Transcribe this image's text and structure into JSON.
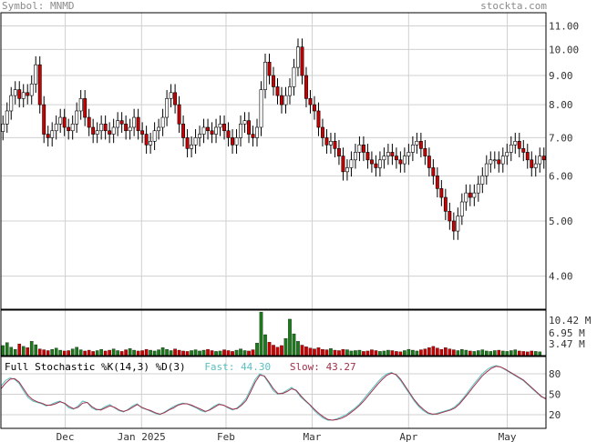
{
  "header": {
    "symbol_label": "Symbol: MNMD",
    "source_label": "stockta.com"
  },
  "indicator": {
    "name": "Full Stochastic %K(14,3) %D(3)",
    "fast_label": "Fast:",
    "fast_value": "44.30",
    "slow_label": "Slow:",
    "slow_value": "43.27"
  },
  "colors": {
    "up_candle": "#ffffff",
    "down_candle": "#cc0000",
    "up_volume": "#1a7a1a",
    "down_volume": "#cc0000",
    "fast_line": "#5bbfc0",
    "slow_line": "#a0304a",
    "grid": "#d0d0d0"
  },
  "chart_data": [
    {
      "type": "candlestick",
      "scale": "log",
      "ylim": [
        3.5,
        11.6
      ],
      "y_ticks": [
        "11.00",
        "10.00",
        "9.00",
        "8.00",
        "7.00",
        "6.00",
        "5.00",
        "4.00"
      ],
      "x_tick_labels": [
        "Dec",
        "Jan 2025",
        "Feb",
        "Mar",
        "Apr",
        "May"
      ],
      "grid": true,
      "close_series": [
        7.4,
        7.8,
        8.3,
        8.5,
        8.2,
        8.4,
        8.3,
        8.7,
        9.4,
        8.0,
        7.1,
        7.0,
        7.2,
        7.4,
        7.6,
        7.3,
        7.2,
        7.4,
        7.8,
        8.2,
        7.6,
        7.3,
        7.1,
        7.2,
        7.4,
        7.2,
        7.1,
        7.3,
        7.5,
        7.4,
        7.2,
        7.3,
        7.6,
        7.2,
        7.1,
        6.8,
        6.9,
        7.2,
        7.3,
        7.6,
        8.2,
        8.4,
        8.0,
        7.4,
        7.0,
        6.7,
        6.8,
        7.0,
        7.1,
        7.3,
        7.2,
        7.1,
        7.3,
        7.4,
        7.2,
        7.0,
        6.8,
        7.0,
        7.4,
        7.5,
        7.1,
        7.0,
        7.3,
        8.5,
        9.5,
        9.0,
        8.6,
        8.3,
        8.0,
        8.3,
        8.6,
        9.3,
        10.1,
        9.0,
        8.2,
        8.0,
        7.8,
        7.3,
        7.0,
        6.8,
        6.9,
        6.7,
        6.5,
        6.1,
        6.2,
        6.4,
        6.6,
        6.8,
        6.6,
        6.4,
        6.3,
        6.2,
        6.4,
        6.5,
        6.6,
        6.5,
        6.4,
        6.3,
        6.5,
        6.6,
        6.8,
        6.9,
        6.7,
        6.5,
        6.2,
        6.0,
        5.7,
        5.5,
        5.2,
        5.0,
        4.8,
        5.1,
        5.4,
        5.6,
        5.5,
        5.6,
        5.8,
        6.0,
        6.3,
        6.4,
        6.4,
        6.3,
        6.5,
        6.6,
        6.8,
        6.9,
        6.7,
        6.6,
        6.4,
        6.2,
        6.3,
        6.5,
        6.4
      ],
      "volume_axis": [
        "10.42 M",
        "6.95 M",
        "3.47 M"
      ],
      "volume_millions": [
        2.4,
        3.1,
        2.0,
        1.5,
        2.8,
        2.2,
        1.9,
        3.4,
        2.6,
        1.6,
        1.4,
        1.2,
        1.5,
        1.8,
        1.3,
        1.1,
        1.2,
        1.6,
        2.0,
        1.4,
        1.1,
        1.3,
        1.0,
        1.2,
        1.5,
        1.1,
        1.3,
        1.6,
        1.2,
        1.0,
        1.4,
        1.7,
        1.3,
        1.1,
        1.2,
        1.5,
        1.3,
        1.1,
        1.4,
        1.9,
        1.5,
        1.2,
        1.6,
        1.3,
        1.1,
        1.0,
        1.2,
        1.4,
        1.1,
        1.3,
        1.5,
        1.2,
        1.0,
        1.1,
        1.4,
        1.2,
        1.0,
        1.3,
        1.6,
        1.2,
        1.1,
        1.4,
        3.0,
        10.4,
        5.0,
        3.2,
        2.5,
        2.0,
        2.4,
        4.1,
        8.7,
        5.2,
        3.4,
        2.5,
        2.1,
        1.8,
        1.6,
        1.9,
        1.5,
        1.4,
        1.7,
        1.3,
        1.2,
        1.5,
        1.4,
        1.1,
        1.2,
        1.3,
        1.0,
        1.1,
        1.4,
        1.2,
        1.0,
        1.1,
        1.3,
        1.2,
        1.0,
        0.9,
        1.2,
        1.5,
        1.3,
        1.1,
        1.4,
        1.6,
        1.9,
        2.2,
        1.8,
        1.5,
        1.9,
        1.6,
        1.4,
        1.2,
        1.5,
        1.3,
        1.1,
        1.0,
        1.2,
        1.4,
        1.1,
        1.0,
        1.2,
        1.3,
        1.1,
        1.0,
        1.2,
        1.4,
        1.1,
        1.0,
        0.9,
        1.1,
        1.0,
        0.9
      ],
      "stoch_axis": [
        "80",
        "50",
        "20"
      ],
      "stoch_fast": [
        62,
        70,
        74,
        72,
        66,
        55,
        45,
        40,
        38,
        36,
        33,
        35,
        38,
        40,
        36,
        30,
        28,
        33,
        40,
        38,
        30,
        27,
        28,
        32,
        35,
        30,
        26,
        24,
        28,
        33,
        36,
        30,
        28,
        25,
        22,
        20,
        24,
        28,
        32,
        35,
        37,
        36,
        33,
        30,
        26,
        24,
        28,
        33,
        36,
        34,
        30,
        27,
        30,
        36,
        44,
        58,
        72,
        80,
        76,
        66,
        55,
        50,
        52,
        56,
        60,
        55,
        46,
        40,
        34,
        26,
        20,
        15,
        12,
        12,
        14,
        17,
        20,
        25,
        30,
        36,
        44,
        52,
        60,
        68,
        75,
        80,
        82,
        78,
        70,
        60,
        50,
        40,
        32,
        26,
        22,
        20,
        22,
        24,
        26,
        28,
        32,
        38,
        46,
        55,
        64,
        72,
        80,
        86,
        90,
        92,
        90,
        86,
        82,
        78,
        74,
        70,
        64,
        58,
        52,
        46,
        44
      ],
      "stoch_slow": [
        58,
        66,
        72,
        73,
        68,
        58,
        48,
        42,
        39,
        37,
        34,
        34,
        36,
        39,
        37,
        32,
        29,
        31,
        37,
        38,
        32,
        28,
        27,
        30,
        33,
        31,
        27,
        25,
        27,
        31,
        35,
        31,
        28,
        26,
        23,
        21,
        23,
        27,
        30,
        34,
        36,
        36,
        34,
        31,
        28,
        25,
        27,
        31,
        35,
        34,
        31,
        28,
        29,
        34,
        41,
        54,
        68,
        78,
        77,
        68,
        58,
        51,
        51,
        54,
        58,
        56,
        48,
        41,
        35,
        28,
        22,
        17,
        13,
        12,
        13,
        15,
        18,
        23,
        28,
        34,
        41,
        49,
        57,
        65,
        72,
        78,
        81,
        79,
        72,
        62,
        52,
        42,
        34,
        28,
        23,
        21,
        21,
        23,
        25,
        27,
        30,
        36,
        44,
        52,
        61,
        69,
        77,
        83,
        88,
        91,
        90,
        87,
        83,
        79,
        75,
        71,
        65,
        59,
        53,
        47,
        43
      ]
    }
  ]
}
